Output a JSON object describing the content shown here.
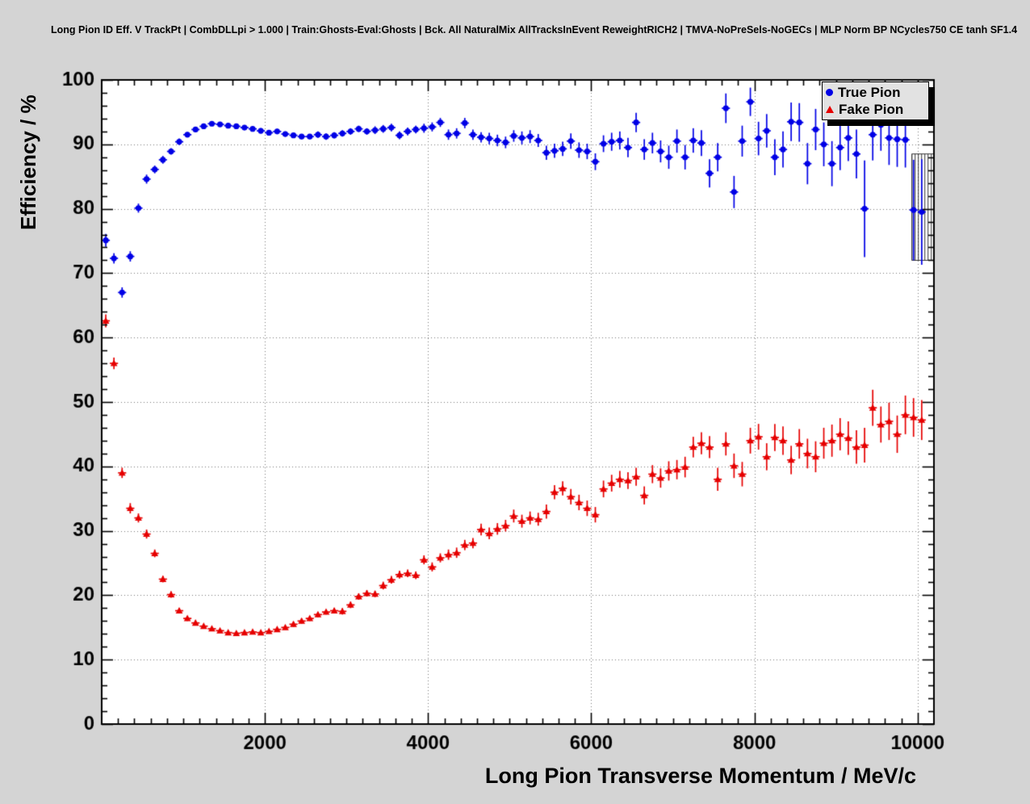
{
  "colors": {
    "background": "#d4d4d4",
    "plot_background": "#ffffff",
    "frame": "#000000",
    "grid": "#777777",
    "true_pion": "#0000e6",
    "fake_pion": "#e60000"
  },
  "legend": {
    "position": "top-right",
    "entries": [
      {
        "label": "True Pion",
        "marker": "circle",
        "color": "#0000e6"
      },
      {
        "label": "Fake Pion",
        "marker": "triangle",
        "color": "#e60000"
      }
    ]
  },
  "chart_data": {
    "type": "scatter",
    "title": "Long Pion ID Eff. V TrackPt | CombDLLpi > 1.000 | Train:Ghosts-Eval:Ghosts | Bck. All NaturalMix AllTracksInEvent ReweightRICH2 | TMVA-NoPreSels-NoGECs | MLP Norm BP NCycles750 CE tanh SF1.4",
    "xlabel": "Long Pion Transverse Momentum / MeV/c",
    "ylabel": "Efficiency / %",
    "xlim": [
      0,
      10200
    ],
    "ylim": [
      0,
      100
    ],
    "x_ticks": [
      2000,
      4000,
      6000,
      8000,
      10000
    ],
    "y_ticks": [
      0,
      10,
      20,
      30,
      40,
      50,
      60,
      70,
      80,
      90,
      100
    ],
    "x_minor_step": 200,
    "y_minor_step": 2,
    "grid": "dotted",
    "x_bin_halfwidth": 50,
    "last_bin_error_box": {
      "series": "True Pion",
      "x0": 9930,
      "x1": 10200,
      "y0": 72.0,
      "y1": 88.5,
      "hatch": "vertical"
    },
    "series": [
      {
        "name": "True Pion",
        "marker": "circle",
        "color": "#0000e6",
        "points": [
          [
            50,
            75.1,
            1.0
          ],
          [
            150,
            72.3,
            0.8
          ],
          [
            250,
            67.0,
            0.8
          ],
          [
            350,
            72.6,
            0.8
          ],
          [
            450,
            80.1,
            0.7
          ],
          [
            550,
            84.6,
            0.7
          ],
          [
            650,
            86.1,
            0.6
          ],
          [
            750,
            87.6,
            0.6
          ],
          [
            850,
            88.9,
            0.5
          ],
          [
            950,
            90.4,
            0.5
          ],
          [
            1050,
            91.5,
            0.4
          ],
          [
            1150,
            92.3,
            0.4
          ],
          [
            1250,
            92.8,
            0.4
          ],
          [
            1350,
            93.2,
            0.3
          ],
          [
            1450,
            93.1,
            0.3
          ],
          [
            1550,
            92.9,
            0.3
          ],
          [
            1650,
            92.8,
            0.3
          ],
          [
            1750,
            92.6,
            0.3
          ],
          [
            1850,
            92.4,
            0.4
          ],
          [
            1950,
            92.1,
            0.4
          ],
          [
            2050,
            91.8,
            0.4
          ],
          [
            2150,
            92.0,
            0.4
          ],
          [
            2250,
            91.6,
            0.4
          ],
          [
            2350,
            91.4,
            0.4
          ],
          [
            2450,
            91.2,
            0.4
          ],
          [
            2550,
            91.2,
            0.4
          ],
          [
            2650,
            91.5,
            0.5
          ],
          [
            2750,
            91.2,
            0.5
          ],
          [
            2850,
            91.4,
            0.5
          ],
          [
            2950,
            91.7,
            0.5
          ],
          [
            3050,
            92.0,
            0.5
          ],
          [
            3150,
            92.4,
            0.5
          ],
          [
            3250,
            92.0,
            0.5
          ],
          [
            3350,
            92.2,
            0.6
          ],
          [
            3450,
            92.4,
            0.6
          ],
          [
            3550,
            92.6,
            0.6
          ],
          [
            3650,
            91.4,
            0.6
          ],
          [
            3750,
            92.0,
            0.6
          ],
          [
            3850,
            92.3,
            0.6
          ],
          [
            3950,
            92.5,
            0.7
          ],
          [
            4050,
            92.7,
            0.7
          ],
          [
            4150,
            93.4,
            0.7
          ],
          [
            4250,
            91.5,
            0.8
          ],
          [
            4350,
            91.7,
            0.8
          ],
          [
            4450,
            93.3,
            0.8
          ],
          [
            4550,
            91.5,
            0.8
          ],
          [
            4650,
            91.1,
            0.8
          ],
          [
            4750,
            90.9,
            0.9
          ],
          [
            4850,
            90.6,
            0.9
          ],
          [
            4950,
            90.3,
            0.9
          ],
          [
            5050,
            91.3,
            0.9
          ],
          [
            5150,
            91.0,
            1.0
          ],
          [
            5250,
            91.2,
            1.0
          ],
          [
            5350,
            90.6,
            1.0
          ],
          [
            5450,
            88.7,
            1.1
          ],
          [
            5550,
            89.0,
            1.1
          ],
          [
            5650,
            89.3,
            1.1
          ],
          [
            5750,
            90.5,
            1.2
          ],
          [
            5850,
            89.1,
            1.2
          ],
          [
            5950,
            88.9,
            1.2
          ],
          [
            6050,
            87.3,
            1.3
          ],
          [
            6150,
            90.1,
            1.3
          ],
          [
            6250,
            90.4,
            1.4
          ],
          [
            6350,
            90.6,
            1.4
          ],
          [
            6450,
            89.5,
            1.5
          ],
          [
            6550,
            93.4,
            1.5
          ],
          [
            6650,
            89.2,
            1.6
          ],
          [
            6750,
            90.2,
            1.6
          ],
          [
            6850,
            88.9,
            1.7
          ],
          [
            6950,
            88.0,
            1.8
          ],
          [
            7050,
            90.5,
            1.8
          ],
          [
            7150,
            88.0,
            1.9
          ],
          [
            7250,
            90.6,
            1.9
          ],
          [
            7350,
            90.2,
            2.0
          ],
          [
            7450,
            85.5,
            2.2
          ],
          [
            7550,
            88.0,
            2.2
          ],
          [
            7650,
            95.6,
            2.3
          ],
          [
            7750,
            82.6,
            2.5
          ],
          [
            7850,
            90.5,
            2.4
          ],
          [
            7950,
            96.6,
            2.2
          ],
          [
            8050,
            90.9,
            2.6
          ],
          [
            8150,
            92.1,
            2.6
          ],
          [
            8250,
            88.0,
            2.8
          ],
          [
            8350,
            89.2,
            2.8
          ],
          [
            8450,
            93.5,
            3.0
          ],
          [
            8550,
            93.4,
            3.0
          ],
          [
            8650,
            87.0,
            3.2
          ],
          [
            8750,
            92.3,
            3.2
          ],
          [
            8850,
            90.0,
            3.4
          ],
          [
            8950,
            87.0,
            3.5
          ],
          [
            9050,
            89.5,
            3.5
          ],
          [
            9150,
            91.0,
            3.6
          ],
          [
            9250,
            88.5,
            3.8
          ],
          [
            9350,
            80.0,
            7.5
          ],
          [
            9450,
            91.5,
            4.0
          ],
          [
            9550,
            93.0,
            4.0
          ],
          [
            9650,
            91.0,
            4.2
          ],
          [
            9750,
            90.8,
            4.3
          ],
          [
            9850,
            90.7,
            4.3
          ],
          [
            9950,
            79.8,
            7.8
          ],
          [
            10050,
            79.5,
            8.2
          ]
        ]
      },
      {
        "name": "Fake Pion",
        "marker": "triangle",
        "color": "#e60000",
        "points": [
          [
            50,
            62.6,
            1.0
          ],
          [
            150,
            56.0,
            0.9
          ],
          [
            250,
            39.0,
            0.8
          ],
          [
            350,
            33.5,
            0.8
          ],
          [
            450,
            32.0,
            0.7
          ],
          [
            550,
            29.5,
            0.7
          ],
          [
            650,
            26.5,
            0.6
          ],
          [
            750,
            22.5,
            0.5
          ],
          [
            850,
            20.1,
            0.5
          ],
          [
            950,
            17.6,
            0.4
          ],
          [
            1050,
            16.4,
            0.4
          ],
          [
            1150,
            15.7,
            0.4
          ],
          [
            1250,
            15.2,
            0.3
          ],
          [
            1350,
            14.8,
            0.3
          ],
          [
            1450,
            14.5,
            0.3
          ],
          [
            1550,
            14.2,
            0.3
          ],
          [
            1650,
            14.1,
            0.3
          ],
          [
            1750,
            14.2,
            0.3
          ],
          [
            1850,
            14.3,
            0.3
          ],
          [
            1950,
            14.2,
            0.3
          ],
          [
            2050,
            14.4,
            0.3
          ],
          [
            2150,
            14.7,
            0.3
          ],
          [
            2250,
            15.0,
            0.3
          ],
          [
            2350,
            15.5,
            0.4
          ],
          [
            2450,
            16.0,
            0.4
          ],
          [
            2550,
            16.4,
            0.4
          ],
          [
            2650,
            17.0,
            0.4
          ],
          [
            2750,
            17.4,
            0.4
          ],
          [
            2850,
            17.6,
            0.4
          ],
          [
            2950,
            17.5,
            0.5
          ],
          [
            3050,
            18.5,
            0.5
          ],
          [
            3150,
            19.8,
            0.5
          ],
          [
            3250,
            20.3,
            0.5
          ],
          [
            3350,
            20.2,
            0.5
          ],
          [
            3450,
            21.5,
            0.6
          ],
          [
            3550,
            22.4,
            0.6
          ],
          [
            3650,
            23.2,
            0.6
          ],
          [
            3750,
            23.4,
            0.6
          ],
          [
            3850,
            23.1,
            0.6
          ],
          [
            3950,
            25.5,
            0.7
          ],
          [
            4050,
            24.4,
            0.7
          ],
          [
            4150,
            25.8,
            0.7
          ],
          [
            4250,
            26.3,
            0.8
          ],
          [
            4350,
            26.6,
            0.8
          ],
          [
            4450,
            27.8,
            0.8
          ],
          [
            4550,
            28.1,
            0.8
          ],
          [
            4650,
            30.2,
            0.9
          ],
          [
            4750,
            29.6,
            0.9
          ],
          [
            4850,
            30.3,
            0.9
          ],
          [
            4950,
            30.8,
            0.9
          ],
          [
            5050,
            32.3,
            1.0
          ],
          [
            5150,
            31.5,
            1.0
          ],
          [
            5250,
            32.0,
            1.0
          ],
          [
            5350,
            31.8,
            1.0
          ],
          [
            5450,
            33.0,
            1.1
          ],
          [
            5550,
            36.0,
            1.1
          ],
          [
            5650,
            36.6,
            1.1
          ],
          [
            5750,
            35.3,
            1.2
          ],
          [
            5850,
            34.4,
            1.2
          ],
          [
            5950,
            33.5,
            1.2
          ],
          [
            6050,
            32.5,
            1.2
          ],
          [
            6150,
            36.5,
            1.3
          ],
          [
            6250,
            37.4,
            1.3
          ],
          [
            6350,
            38.0,
            1.3
          ],
          [
            6450,
            37.8,
            1.3
          ],
          [
            6550,
            38.4,
            1.4
          ],
          [
            6650,
            35.5,
            1.4
          ],
          [
            6750,
            38.8,
            1.4
          ],
          [
            6850,
            38.2,
            1.5
          ],
          [
            6950,
            39.3,
            1.5
          ],
          [
            7050,
            39.5,
            1.5
          ],
          [
            7150,
            39.9,
            1.6
          ],
          [
            7250,
            43.0,
            1.6
          ],
          [
            7350,
            43.6,
            1.7
          ],
          [
            7450,
            43.0,
            1.7
          ],
          [
            7550,
            38.0,
            1.8
          ],
          [
            7650,
            43.5,
            1.8
          ],
          [
            7750,
            40.1,
            1.9
          ],
          [
            7850,
            38.8,
            1.9
          ],
          [
            7950,
            44.0,
            2.0
          ],
          [
            8050,
            44.6,
            2.0
          ],
          [
            8150,
            41.5,
            2.1
          ],
          [
            8250,
            44.5,
            2.1
          ],
          [
            8350,
            44.0,
            2.2
          ],
          [
            8450,
            41.0,
            2.2
          ],
          [
            8550,
            43.5,
            2.3
          ],
          [
            8650,
            42.0,
            2.3
          ],
          [
            8750,
            41.5,
            2.4
          ],
          [
            8850,
            43.6,
            2.4
          ],
          [
            8950,
            44.0,
            2.5
          ],
          [
            9050,
            45.0,
            2.5
          ],
          [
            9150,
            44.4,
            2.6
          ],
          [
            9250,
            43.0,
            2.6
          ],
          [
            9350,
            43.3,
            2.7
          ],
          [
            9450,
            49.1,
            2.8
          ],
          [
            9550,
            46.5,
            2.8
          ],
          [
            9650,
            47.0,
            2.9
          ],
          [
            9750,
            45.0,
            2.9
          ],
          [
            9850,
            48.0,
            3.0
          ],
          [
            9950,
            47.6,
            3.0
          ],
          [
            10050,
            47.2,
            3.1
          ]
        ]
      }
    ]
  }
}
